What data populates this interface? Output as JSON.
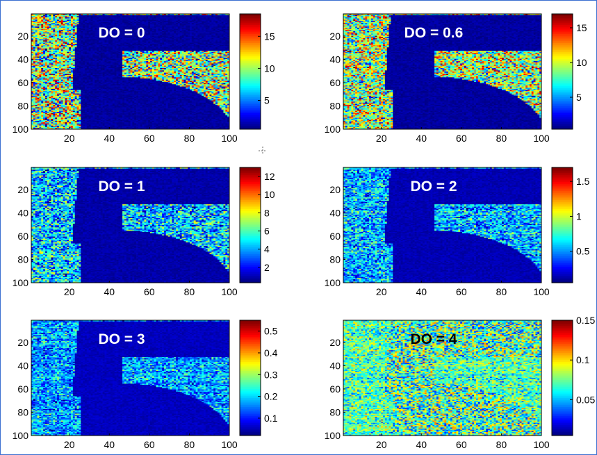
{
  "figure": {
    "frame_color": "#3a6fd0",
    "cursor_icon": "crosshair-cursor-icon"
  },
  "colormap": {
    "name": "jet",
    "stops": [
      "#00008f",
      "#0000ff",
      "#00ffff",
      "#ffff00",
      "#ff0000",
      "#800000"
    ]
  },
  "chart_data": [
    {
      "type": "heatmap",
      "label": "DO = 0",
      "label_color": "#ffffff",
      "x_ticks": [
        20,
        40,
        60,
        80,
        100
      ],
      "y_ticks": [
        20,
        40,
        60,
        80,
        100
      ],
      "xlim": [
        1,
        100
      ],
      "ylim": [
        1,
        100
      ],
      "colorbar": {
        "ticks": [
          5,
          10,
          15
        ],
        "range": [
          0.5,
          18.5
        ]
      },
      "noise_level": 0.5,
      "noise_spread": 0.25,
      "digit_level": 0.03
    },
    {
      "type": "heatmap",
      "label": "DO = 0.6",
      "label_color": "#ffffff",
      "x_ticks": [
        20,
        40,
        60,
        80,
        100
      ],
      "y_ticks": [
        20,
        40,
        60,
        80,
        100
      ],
      "xlim": [
        1,
        100
      ],
      "ylim": [
        1,
        100
      ],
      "colorbar": {
        "ticks": [
          5,
          10,
          15
        ],
        "range": [
          0.4,
          17
        ]
      },
      "noise_level": 0.52,
      "noise_spread": 0.22,
      "digit_level": 0.03
    },
    {
      "type": "heatmap",
      "label": "DO = 1",
      "label_color": "#ffffff",
      "x_ticks": [
        20,
        40,
        60,
        80,
        100
      ],
      "y_ticks": [
        20,
        40,
        60,
        80,
        100
      ],
      "xlim": [
        1,
        100
      ],
      "ylim": [
        1,
        100
      ],
      "colorbar": {
        "ticks": [
          2,
          4,
          6,
          8,
          10,
          12
        ],
        "range": [
          0.3,
          13
        ]
      },
      "noise_level": 0.33,
      "noise_spread": 0.16,
      "digit_level": 0.04
    },
    {
      "type": "heatmap",
      "label": "DO = 2",
      "label_color": "#ffffff",
      "x_ticks": [
        20,
        40,
        60,
        80,
        100
      ],
      "y_ticks": [
        20,
        40,
        60,
        80,
        100
      ],
      "xlim": [
        1,
        100
      ],
      "ylim": [
        1,
        100
      ],
      "colorbar": {
        "ticks": [
          0.5,
          1,
          1.5
        ],
        "range": [
          0.05,
          1.7
        ]
      },
      "noise_level": 0.3,
      "noise_spread": 0.13,
      "digit_level": 0.05
    },
    {
      "type": "heatmap",
      "label": "DO = 3",
      "label_color": "#ffffff",
      "x_ticks": [
        20,
        40,
        60,
        80,
        100
      ],
      "y_ticks": [
        20,
        40,
        60,
        80,
        100
      ],
      "xlim": [
        1,
        100
      ],
      "ylim": [
        1,
        100
      ],
      "colorbar": {
        "ticks": [
          0.1,
          0.2,
          0.3,
          0.4,
          0.5
        ],
        "range": [
          0.02,
          0.55
        ]
      },
      "noise_level": 0.28,
      "noise_spread": 0.12,
      "digit_level": 0.06
    },
    {
      "type": "heatmap",
      "label": "DO = 4",
      "label_color": "#000000",
      "x_ticks": [
        20,
        40,
        60,
        80,
        100
      ],
      "y_ticks": [
        20,
        40,
        60,
        80,
        100
      ],
      "xlim": [
        1,
        100
      ],
      "ylim": [
        1,
        100
      ],
      "colorbar": {
        "ticks": [
          0.05,
          0.1,
          0.15
        ],
        "range": [
          0.005,
          0.15
        ]
      },
      "noise_level": 0.45,
      "noise_spread": 0.12,
      "digit_level": 0.45
    }
  ]
}
